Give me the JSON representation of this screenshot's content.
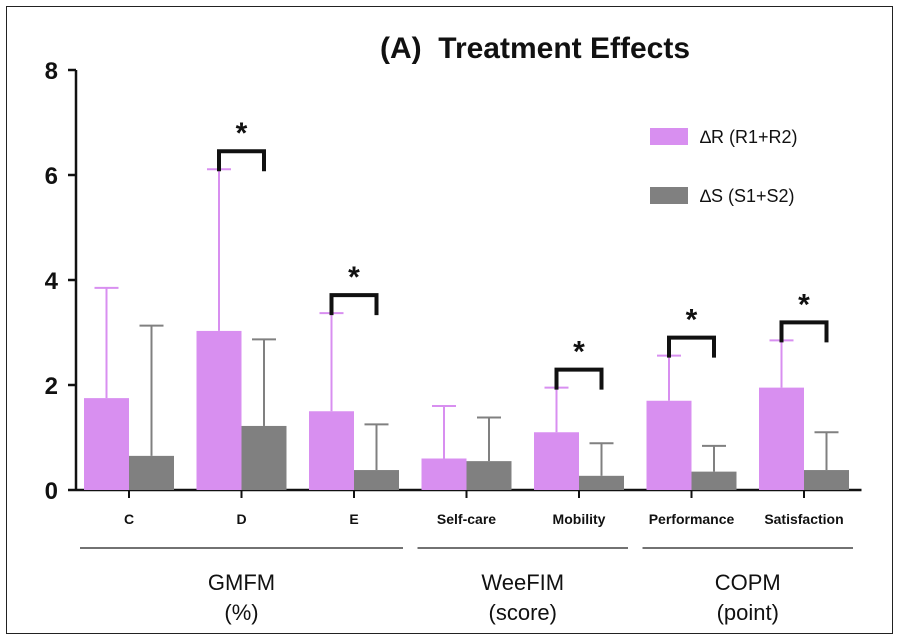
{
  "chart_data": {
    "type": "bar",
    "title": "(A)  Treatment Effects",
    "ylim": [
      0,
      8
    ],
    "yticks": [
      0,
      2,
      4,
      6,
      8
    ],
    "categories": [
      "C",
      "D",
      "E",
      "Self-care",
      "Mobility",
      "Performance",
      "Satisfaction"
    ],
    "groups": [
      {
        "label_line1": "GMFM",
        "label_line2": "(%)",
        "categories": [
          "C",
          "D",
          "E"
        ]
      },
      {
        "label_line1": "WeeFIM",
        "label_line2": "(score)",
        "categories": [
          "Self-care",
          "Mobility"
        ]
      },
      {
        "label_line1": "COPM",
        "label_line2": "(point)",
        "categories": [
          "Performance",
          "Satisfaction"
        ]
      }
    ],
    "series": [
      {
        "name": "∆R (R1+R2)",
        "color": "#d88ff0",
        "values": [
          1.75,
          3.03,
          1.5,
          0.6,
          1.1,
          1.7,
          1.95
        ],
        "error": [
          2.1,
          3.08,
          1.87,
          1.0,
          0.85,
          0.86,
          0.9
        ]
      },
      {
        "name": "∆S (S1+S2)",
        "color": "#808080",
        "values": [
          0.65,
          1.22,
          0.38,
          0.55,
          0.27,
          0.35,
          0.38
        ],
        "error": [
          2.48,
          1.65,
          0.87,
          0.83,
          0.62,
          0.49,
          0.72
        ]
      }
    ],
    "significance": {
      "marker": "*",
      "categories": [
        "D",
        "E",
        "Mobility",
        "Performance",
        "Satisfaction"
      ]
    },
    "legend_position": "top-right",
    "grid": false
  }
}
